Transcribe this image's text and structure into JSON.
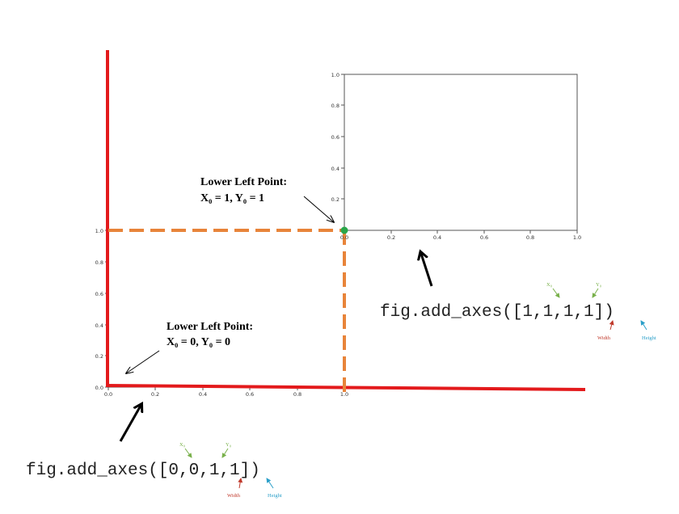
{
  "colors": {
    "red_axis": "#e31a1c",
    "dashed": "#e8843a",
    "green_point": "#2aa64a",
    "x0_label": "#78b04a",
    "y0_label": "#78b04a",
    "width_label": "#c0392b",
    "height_label": "#2a9fc9",
    "frame": "#555555"
  },
  "outer_axes": {
    "x_ticks": [
      "0.0",
      "0.2",
      "0.4",
      "0.6",
      "0.8",
      "1.0"
    ],
    "y_ticks": [
      "0.0",
      "0.2",
      "0.4",
      "0.6",
      "0.8",
      "1.0"
    ]
  },
  "inner_axes": {
    "x_ticks": [
      "0.0",
      "0.2",
      "0.4",
      "0.6",
      "0.8",
      "1.0"
    ],
    "y_ticks": [
      "0.2",
      "0.4",
      "0.6",
      "0.8",
      "1.0"
    ]
  },
  "annotation_top": {
    "line1": "Lower Left Point:",
    "line2": "X₀ = 1, Y₀ = 1"
  },
  "annotation_bottom": {
    "line1": "Lower Left Point:",
    "line2": "X₀ = 0, Y₀ = 0"
  },
  "code_top": {
    "text": "fig.add_axes([1,1,1,1])",
    "x0": "X₀",
    "y0": "Y₀",
    "width": "Width",
    "height": "Height"
  },
  "code_bottom": {
    "text": "fig.add_axes([0,0,1,1])",
    "x0": "X₀",
    "y0": "Y₀",
    "width": "Width",
    "height": "Height"
  }
}
